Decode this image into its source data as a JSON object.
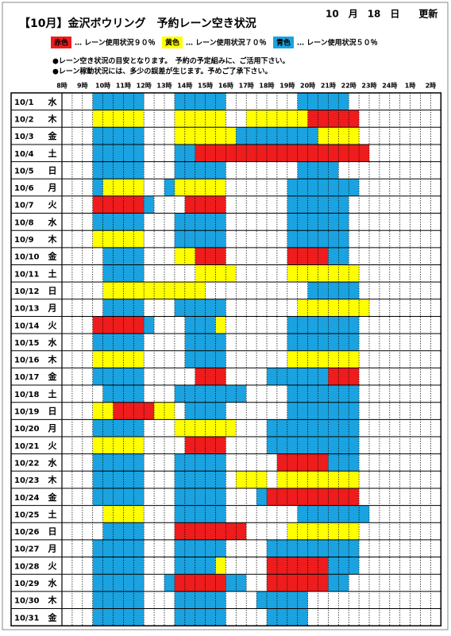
{
  "header": {
    "title": "【10月】金沢ボウリング　予約レーン空き状況",
    "updated": "10　月　18　日　　更新"
  },
  "legend": [
    {
      "tag": "赤色",
      "text": "… レーン使用状況９０％",
      "color": "#ee1c1c",
      "tag_color": "#fff"
    },
    {
      "tag": "黄色",
      "text": "… レーン使用状況７０％",
      "color": "#ffff00",
      "tag_color": "#000"
    },
    {
      "tag": "青色",
      "text": "… レーン使用状況５０％",
      "color": "#1aa3e0",
      "tag_color": "#000"
    }
  ],
  "notes": [
    "●レーン空き状況の目安となります。　予約の予定組みに、ご活用下さい。",
    "●レーン稼動状況には、多少の誤差が生じます。予めご了承下さい。"
  ],
  "colors": {
    "R": "#ee1c1c",
    "Y": "#ffff00",
    "B": "#1aa3e0"
  },
  "weekday_colors": {
    "土": "#1f3fae",
    "日": "#e01010"
  },
  "hours": [
    "8時",
    "9時",
    "10時",
    "11時",
    "12時",
    "13時",
    "14時",
    "15時",
    "16時",
    "17時",
    "18時",
    "19時",
    "20時",
    "21時",
    "22時",
    "23時",
    "24時",
    "1時",
    "2時"
  ],
  "rows": [
    {
      "date": "10/1",
      "day": "水",
      "runs": [
        [
          "B",
          3,
          7
        ],
        [
          "B",
          11,
          15
        ],
        [
          "B",
          23,
          27
        ]
      ]
    },
    {
      "date": "10/2",
      "day": "木",
      "runs": [
        [
          "Y",
          3,
          7
        ],
        [
          "Y",
          11,
          15
        ],
        [
          "Y",
          18,
          23
        ],
        [
          "R",
          24,
          28
        ]
      ]
    },
    {
      "date": "10/3",
      "day": "金",
      "runs": [
        [
          "B",
          3,
          7
        ],
        [
          "Y",
          11,
          16
        ],
        [
          "B",
          17,
          24
        ],
        [
          "Y",
          25,
          28
        ]
      ]
    },
    {
      "date": "10/4",
      "day": "土",
      "runs": [
        [
          "B",
          3,
          7
        ],
        [
          "B",
          11,
          12
        ],
        [
          "R",
          13,
          29
        ]
      ]
    },
    {
      "date": "10/5",
      "day": "日",
      "runs": [
        [
          "B",
          3,
          7
        ],
        [
          "B",
          11,
          15
        ],
        [
          "B",
          23,
          26
        ]
      ]
    },
    {
      "date": "10/6",
      "day": "月",
      "runs": [
        [
          "B",
          3,
          3
        ],
        [
          "Y",
          4,
          7
        ],
        [
          "B",
          10,
          10
        ],
        [
          "Y",
          11,
          15
        ],
        [
          "B",
          22,
          28
        ]
      ]
    },
    {
      "date": "10/7",
      "day": "火",
      "runs": [
        [
          "R",
          3,
          7
        ],
        [
          "B",
          8,
          8
        ],
        [
          "R",
          12,
          15
        ],
        [
          "B",
          22,
          27
        ]
      ]
    },
    {
      "date": "10/8",
      "day": "水",
      "runs": [
        [
          "B",
          3,
          7
        ],
        [
          "B",
          11,
          15
        ],
        [
          "B",
          22,
          27
        ]
      ]
    },
    {
      "date": "10/9",
      "day": "木",
      "runs": [
        [
          "Y",
          3,
          7
        ],
        [
          "B",
          11,
          15
        ],
        [
          "B",
          22,
          27
        ]
      ]
    },
    {
      "date": "10/10",
      "day": "金",
      "runs": [
        [
          "B",
          4,
          7
        ],
        [
          "Y",
          11,
          12
        ],
        [
          "R",
          13,
          15
        ],
        [
          "R",
          22,
          25
        ],
        [
          "B",
          26,
          27
        ]
      ]
    },
    {
      "date": "10/11",
      "day": "土",
      "runs": [
        [
          "B",
          4,
          7
        ],
        [
          "Y",
          13,
          16
        ],
        [
          "Y",
          22,
          28
        ]
      ]
    },
    {
      "date": "10/12",
      "day": "日",
      "runs": [
        [
          "Y",
          4,
          13
        ],
        [
          "B",
          24,
          28
        ]
      ]
    },
    {
      "date": "10/13",
      "day": "月",
      "runs": [
        [
          "B",
          4,
          7
        ],
        [
          "B",
          11,
          15
        ],
        [
          "Y",
          23,
          29
        ]
      ]
    },
    {
      "date": "10/14",
      "day": "火",
      "runs": [
        [
          "R",
          3,
          7
        ],
        [
          "B",
          8,
          8
        ],
        [
          "B",
          12,
          14
        ],
        [
          "Y",
          15,
          15
        ],
        [
          "B",
          22,
          28
        ]
      ]
    },
    {
      "date": "10/15",
      "day": "水",
      "runs": [
        [
          "B",
          3,
          7
        ],
        [
          "B",
          12,
          15
        ],
        [
          "B",
          22,
          28
        ]
      ]
    },
    {
      "date": "10/16",
      "day": "木",
      "runs": [
        [
          "Y",
          3,
          7
        ],
        [
          "B",
          12,
          15
        ],
        [
          "Y",
          22,
          28
        ]
      ]
    },
    {
      "date": "10/17",
      "day": "金",
      "runs": [
        [
          "B",
          3,
          7
        ],
        [
          "R",
          13,
          15
        ],
        [
          "B",
          20,
          25
        ],
        [
          "R",
          26,
          28
        ]
      ]
    },
    {
      "date": "10/18",
      "day": "土",
      "runs": [
        [
          "B",
          4,
          7
        ],
        [
          "B",
          11,
          17
        ],
        [
          "B",
          22,
          28
        ]
      ]
    },
    {
      "date": "10/19",
      "day": "日",
      "runs": [
        [
          "Y",
          3,
          4
        ],
        [
          "R",
          5,
          8
        ],
        [
          "Y",
          9,
          10
        ],
        [
          "B",
          12,
          15
        ],
        [
          "B",
          22,
          28
        ]
      ]
    },
    {
      "date": "10/20",
      "day": "月",
      "runs": [
        [
          "B",
          3,
          7
        ],
        [
          "Y",
          11,
          16
        ],
        [
          "B",
          20,
          28
        ]
      ]
    },
    {
      "date": "10/21",
      "day": "火",
      "runs": [
        [
          "Y",
          3,
          7
        ],
        [
          "R",
          12,
          15
        ],
        [
          "B",
          20,
          28
        ]
      ]
    },
    {
      "date": "10/22",
      "day": "水",
      "runs": [
        [
          "B",
          3,
          7
        ],
        [
          "B",
          11,
          15
        ],
        [
          "R",
          21,
          25
        ],
        [
          "B",
          26,
          28
        ]
      ]
    },
    {
      "date": "10/23",
      "day": "木",
      "runs": [
        [
          "B",
          3,
          7
        ],
        [
          "B",
          11,
          15
        ],
        [
          "Y",
          17,
          19
        ],
        [
          "Y",
          21,
          28
        ]
      ]
    },
    {
      "date": "10/24",
      "day": "金",
      "runs": [
        [
          "B",
          3,
          7
        ],
        [
          "B",
          11,
          15
        ],
        [
          "B",
          19,
          19
        ],
        [
          "R",
          20,
          28
        ]
      ]
    },
    {
      "date": "10/25",
      "day": "土",
      "runs": [
        [
          "Y",
          4,
          7
        ],
        [
          "B",
          11,
          15
        ],
        [
          "B",
          23,
          29
        ]
      ]
    },
    {
      "date": "10/26",
      "day": "日",
      "runs": [
        [
          "B",
          4,
          7
        ],
        [
          "R",
          11,
          17
        ],
        [
          "Y",
          22,
          28
        ]
      ]
    },
    {
      "date": "10/27",
      "day": "月",
      "runs": [
        [
          "B",
          3,
          7
        ],
        [
          "B",
          11,
          15
        ],
        [
          "B",
          20,
          28
        ]
      ]
    },
    {
      "date": "10/28",
      "day": "火",
      "runs": [
        [
          "B",
          3,
          7
        ],
        [
          "B",
          11,
          14
        ],
        [
          "Y",
          15,
          15
        ],
        [
          "R",
          20,
          25
        ],
        [
          "B",
          26,
          28
        ]
      ]
    },
    {
      "date": "10/29",
      "day": "水",
      "runs": [
        [
          "B",
          3,
          7
        ],
        [
          "B",
          10,
          10
        ],
        [
          "R",
          11,
          15
        ],
        [
          "B",
          16,
          17
        ],
        [
          "R",
          20,
          25
        ],
        [
          "B",
          26,
          27
        ]
      ]
    },
    {
      "date": "10/30",
      "day": "木",
      "runs": [
        [
          "B",
          3,
          7
        ],
        [
          "B",
          11,
          15
        ],
        [
          "B",
          19,
          23
        ]
      ]
    },
    {
      "date": "10/31",
      "day": "金",
      "runs": [
        [
          "B",
          3,
          7
        ],
        [
          "B",
          11,
          15
        ],
        [
          "B",
          20,
          23
        ]
      ]
    }
  ]
}
